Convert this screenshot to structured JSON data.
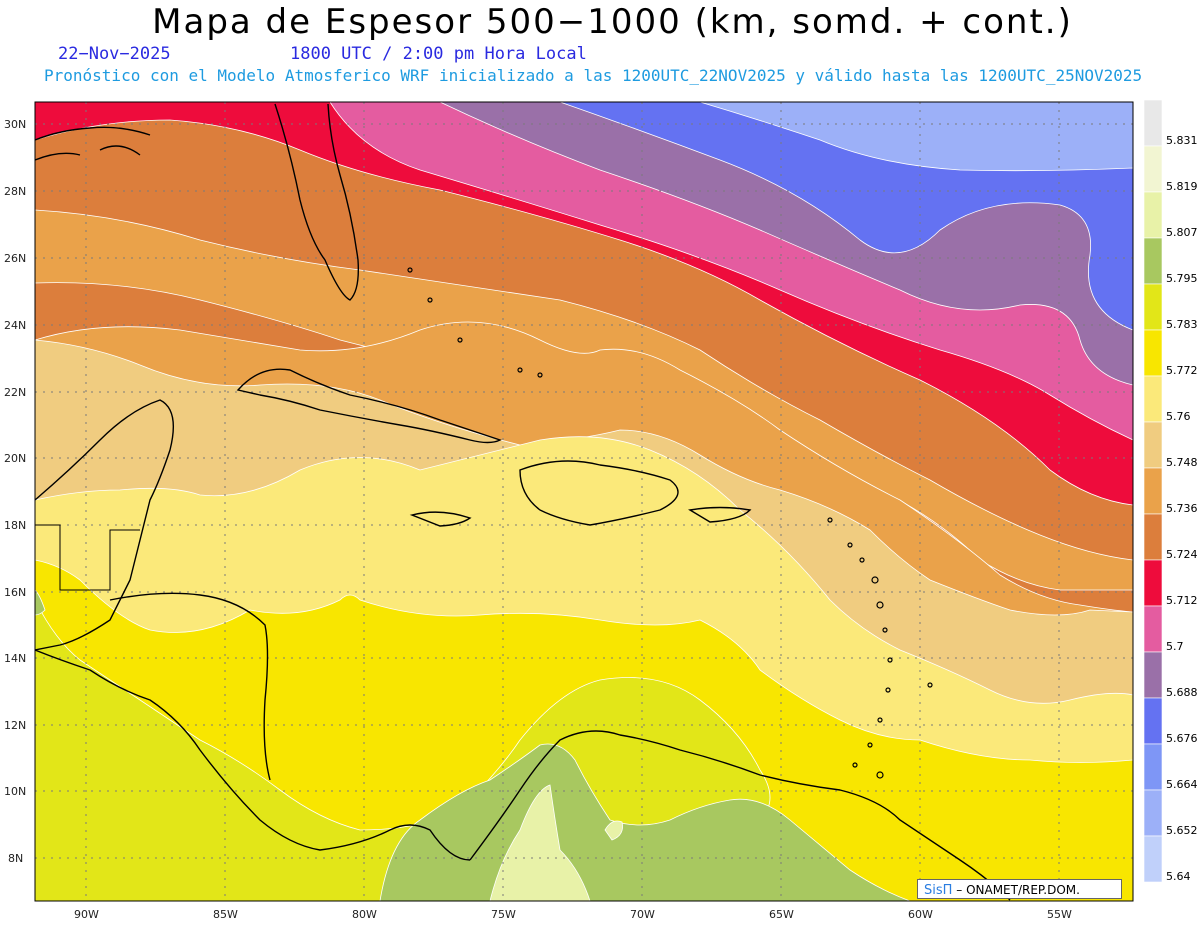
{
  "header": {
    "title": "Mapa de Espesor 500−1000 (km, somd. + cont.)",
    "date": "22−Nov−2025",
    "time": "1800 UTC / 2:00 pm Hora Local",
    "subtitle": "Pronóstico con el Modelo Atmosferico WRF inicializado a las 1200UTC_22NOV2025 y válido hasta las  1200UTC_25NOV2025"
  },
  "axes": {
    "lat_labels": [
      "30N",
      "28N",
      "26N",
      "24N",
      "22N",
      "20N",
      "18N",
      "16N",
      "14N",
      "12N",
      "10N",
      "8N"
    ],
    "lon_labels": [
      "90W",
      "85W",
      "80W",
      "75W",
      "70W",
      "65W",
      "60W",
      "55W"
    ]
  },
  "colorbar": {
    "labels": [
      "5.831",
      "5.819",
      "5.807",
      "5.795",
      "5.783",
      "5.772",
      "5.76",
      "5.748",
      "5.736",
      "5.724",
      "5.712",
      "5.7",
      "5.688",
      "5.676",
      "5.664",
      "5.652",
      "5.64"
    ],
    "colors": [
      "#e8e8e8",
      "#f2f5d2",
      "#e8f2a8",
      "#a8c860",
      "#e2e618",
      "#f8e600",
      "#fbe97a",
      "#f0cc80",
      "#eaa24a",
      "#dc7e3c",
      "#ee0c3c",
      "#e45ca0",
      "#9a70a8",
      "#6472f2",
      "#7e96f6",
      "#9cb0f8",
      "#c0d0fa"
    ]
  },
  "credit": {
    "brand": "SisΠ",
    "text": "– ONAMET/REP.DOM."
  },
  "bands_colors": {
    "lightblue": "#9cb0f8",
    "blue": "#6472f2",
    "purple": "#9a70a8",
    "pink": "#e45ca0",
    "red": "#ee0c3c",
    "darkorange": "#dc7e3c",
    "orange": "#eaa24a",
    "tan": "#f0cc80",
    "lightyellow": "#fbe97a",
    "yellow": "#f8e600",
    "lime": "#e2e618",
    "green": "#a8c860",
    "pale": "#e8f2a8"
  }
}
